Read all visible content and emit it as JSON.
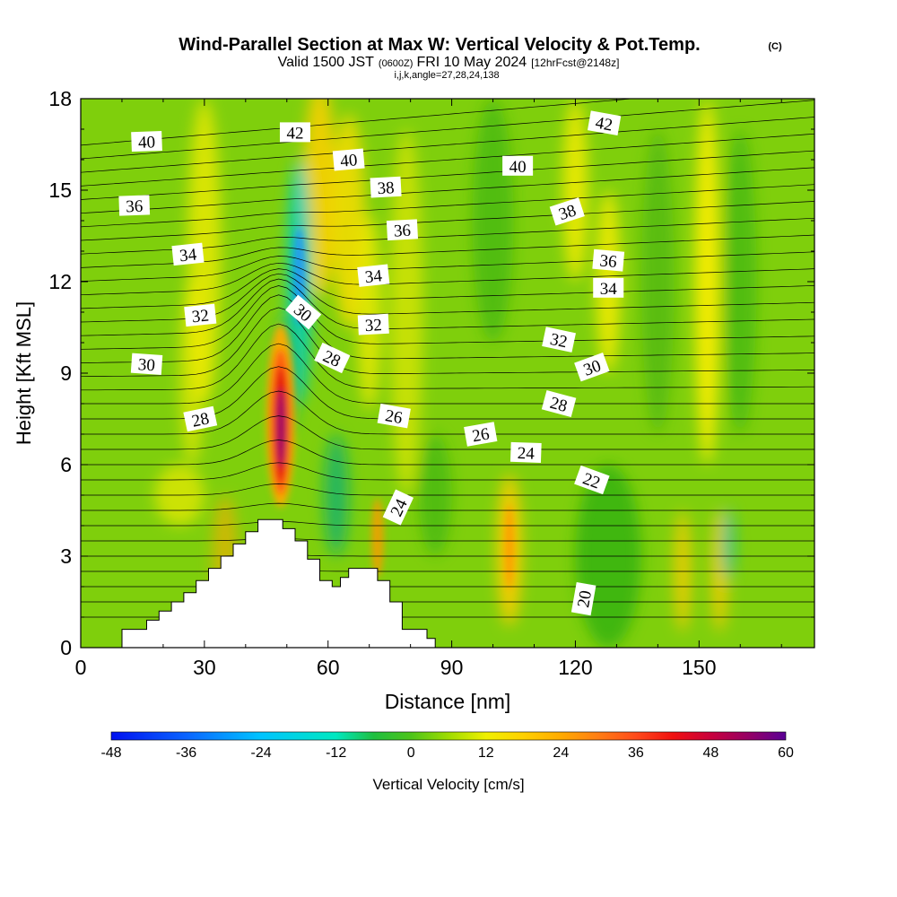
{
  "chart_data": {
    "type": "heatmap",
    "title": "Wind-Parallel Section at Max W: Vertical Velocity & Pot.Temp.",
    "title_mark": "(C)",
    "subtitle_parts": {
      "valid": "Valid 1500 JST",
      "utc": "(0600Z)",
      "date": "FRI 10 May 2024",
      "fcst": "[12hrFcst@2148z]"
    },
    "index_line": "i,j,k,angle=27,28,24,138",
    "xlabel": "Distance [nm]",
    "ylabel": "Height [Kft MSL]",
    "xlim": [
      0,
      178
    ],
    "ylim": [
      0,
      18
    ],
    "x_ticks": [
      "0",
      "30",
      "60",
      "90",
      "120",
      "150"
    ],
    "y_ticks": [
      "0",
      "3",
      "6",
      "9",
      "12",
      "15",
      "18"
    ],
    "colorbar": {
      "label": "Vertical Velocity [cm/s]",
      "range": [
        -48,
        60
      ],
      "tick_labels": [
        "-48",
        "-36",
        "-24",
        "-12",
        "0",
        "12",
        "24",
        "36",
        "48",
        "60"
      ]
    },
    "features": [
      {
        "name": "updraft core",
        "x": 48.5,
        "y": 7.2,
        "w_cm_s": 60
      },
      {
        "name": "downdraft band",
        "x": 53,
        "y": 12,
        "w_cm_s": -30
      },
      {
        "name": "updraft band",
        "x": 104,
        "y": 3.2,
        "w_cm_s": 25
      }
    ],
    "terrain": [
      [
        10,
        0
      ],
      [
        10,
        0.6
      ],
      [
        16,
        0.6
      ],
      [
        16,
        0.9
      ],
      [
        19,
        0.9
      ],
      [
        19,
        1.2
      ],
      [
        22,
        1.2
      ],
      [
        22,
        1.5
      ],
      [
        25,
        1.5
      ],
      [
        25,
        1.8
      ],
      [
        28,
        1.8
      ],
      [
        28,
        2.2
      ],
      [
        31,
        2.2
      ],
      [
        31,
        2.6
      ],
      [
        34,
        2.6
      ],
      [
        34,
        3.0
      ],
      [
        37,
        3.0
      ],
      [
        37,
        3.4
      ],
      [
        40,
        3.4
      ],
      [
        40,
        3.8
      ],
      [
        43,
        3.8
      ],
      [
        43,
        4.2
      ],
      [
        49,
        4.2
      ],
      [
        49,
        3.9
      ],
      [
        52,
        3.9
      ],
      [
        52,
        3.5
      ],
      [
        55,
        3.5
      ],
      [
        55,
        2.9
      ],
      [
        58,
        2.9
      ],
      [
        58,
        2.2
      ],
      [
        61,
        2.2
      ],
      [
        61,
        2.0
      ],
      [
        63,
        2.0
      ],
      [
        63,
        2.3
      ],
      [
        65,
        2.3
      ],
      [
        65,
        2.6
      ],
      [
        72,
        2.6
      ],
      [
        72,
        2.2
      ],
      [
        75,
        2.2
      ],
      [
        75,
        1.5
      ],
      [
        78,
        1.5
      ],
      [
        78,
        0.6
      ],
      [
        84,
        0.6
      ],
      [
        84,
        0.3
      ],
      [
        86,
        0.3
      ],
      [
        86,
        0
      ]
    ],
    "contour_labels": [
      {
        "x": 16,
        "y": 16.6,
        "text": "40",
        "angle": -2
      },
      {
        "x": 13,
        "y": 14.5,
        "text": "36",
        "angle": -2
      },
      {
        "x": 26,
        "y": 12.9,
        "text": "34",
        "angle": -6
      },
      {
        "x": 29,
        "y": 10.9,
        "text": "32",
        "angle": -6
      },
      {
        "x": 16,
        "y": 9.3,
        "text": "30",
        "angle": 4
      },
      {
        "x": 29,
        "y": 7.5,
        "text": "28",
        "angle": -12
      },
      {
        "x": 52,
        "y": 16.9,
        "text": "42",
        "angle": 0
      },
      {
        "x": 65,
        "y": 16.0,
        "text": "40",
        "angle": -5
      },
      {
        "x": 74,
        "y": 15.1,
        "text": "38",
        "angle": -3
      },
      {
        "x": 78,
        "y": 13.7,
        "text": "36",
        "angle": -3
      },
      {
        "x": 71,
        "y": 12.2,
        "text": "34",
        "angle": -6
      },
      {
        "x": 54,
        "y": 11.0,
        "text": "30",
        "angle": 40
      },
      {
        "x": 71,
        "y": 10.6,
        "text": "32",
        "angle": -3
      },
      {
        "x": 61,
        "y": 9.5,
        "text": "28",
        "angle": 25
      },
      {
        "x": 76,
        "y": 7.6,
        "text": "26",
        "angle": 10
      },
      {
        "x": 77,
        "y": 4.6,
        "text": "24",
        "angle": -65
      },
      {
        "x": 97,
        "y": 7.0,
        "text": "26",
        "angle": -10
      },
      {
        "x": 106,
        "y": 15.8,
        "text": "40",
        "angle": 0
      },
      {
        "x": 108,
        "y": 6.4,
        "text": "24",
        "angle": 2
      },
      {
        "x": 118,
        "y": 14.3,
        "text": "38",
        "angle": -18
      },
      {
        "x": 128,
        "y": 12.7,
        "text": "36",
        "angle": 5
      },
      {
        "x": 128,
        "y": 11.8,
        "text": "34",
        "angle": 0
      },
      {
        "x": 116,
        "y": 10.1,
        "text": "32",
        "angle": 12
      },
      {
        "x": 124,
        "y": 9.2,
        "text": "30",
        "angle": -20
      },
      {
        "x": 116,
        "y": 8.0,
        "text": "28",
        "angle": 15
      },
      {
        "x": 124,
        "y": 5.5,
        "text": "22",
        "angle": 20
      },
      {
        "x": 127,
        "y": 17.2,
        "text": "42",
        "angle": 10
      },
      {
        "x": 122,
        "y": 1.6,
        "text": "20",
        "angle": -80
      }
    ]
  }
}
